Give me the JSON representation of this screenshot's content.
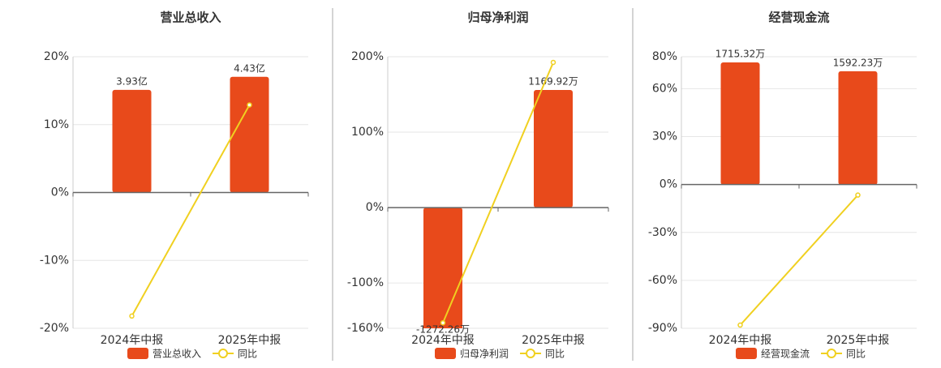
{
  "chart_data": [
    {
      "type": "combo",
      "title": "营业总收入",
      "categories": [
        "2024年中报",
        "2025年中报"
      ],
      "series": [
        {
          "name": "营业总收入",
          "type": "bar",
          "axis": "y2",
          "color": "#e84a1b",
          "values": [
            3.93,
            4.43
          ],
          "value_labels": [
            "3.93亿",
            "4.43亿"
          ]
        },
        {
          "name": "同比",
          "type": "line",
          "color": "#f0d020",
          "values": [
            -18.2,
            12.9
          ]
        }
      ],
      "ylim": [
        -20,
        20
      ],
      "yticks": [
        {
          "value": -20,
          "label": "-20%"
        },
        {
          "value": -10,
          "label": "-10%"
        },
        {
          "value": 0,
          "label": "0%"
        },
        {
          "value": 10,
          "label": "10%"
        },
        {
          "value": 20,
          "label": "20%"
        }
      ],
      "y2lim": [
        -5.2,
        5.2
      ],
      "grid": true
    },
    {
      "type": "combo",
      "title": "归母净利润",
      "categories": [
        "2024年中报",
        "2025年中报"
      ],
      "series": [
        {
          "name": "归母净利润",
          "type": "bar",
          "axis": "y2",
          "color": "#e84a1b",
          "values": [
            -1272.26,
            1169.92
          ],
          "value_labels": [
            "-1272.26万",
            "1169.92万"
          ]
        },
        {
          "name": "同比",
          "type": "line",
          "color": "#f0d020",
          "values": [
            -152.7,
            192.5
          ]
        }
      ],
      "ylim": [
        -160,
        200
      ],
      "yticks": [
        {
          "value": -160,
          "label": "-160%"
        },
        {
          "value": -100,
          "label": "-100%"
        },
        {
          "value": 0,
          "label": "0%"
        },
        {
          "value": 100,
          "label": "100%"
        },
        {
          "value": 200,
          "label": "200%"
        }
      ],
      "y2lim": [
        -1200,
        1500
      ],
      "grid": true
    },
    {
      "type": "combo",
      "title": "经营现金流",
      "categories": [
        "2024年中报",
        "2025年中报"
      ],
      "series": [
        {
          "name": "经营现金流",
          "type": "bar",
          "axis": "y2",
          "color": "#e84a1b",
          "values": [
            1715.32,
            1592.23
          ],
          "value_labels": [
            "1715.32万",
            "1592.23万"
          ]
        },
        {
          "name": "同比",
          "type": "line",
          "color": "#f0d020",
          "values": [
            -88,
            -6.6
          ]
        }
      ],
      "ylim": [
        -90,
        80
      ],
      "yticks": [
        {
          "value": -90,
          "label": "-90%"
        },
        {
          "value": -60,
          "label": "-60%"
        },
        {
          "value": -30,
          "label": "-30%"
        },
        {
          "value": 0,
          "label": "0%"
        },
        {
          "value": 30,
          "label": "30%"
        },
        {
          "value": 60,
          "label": "60%"
        },
        {
          "value": 80,
          "label": "80%"
        }
      ],
      "y2lim": [
        -2010,
        1795
      ],
      "grid": true
    }
  ]
}
